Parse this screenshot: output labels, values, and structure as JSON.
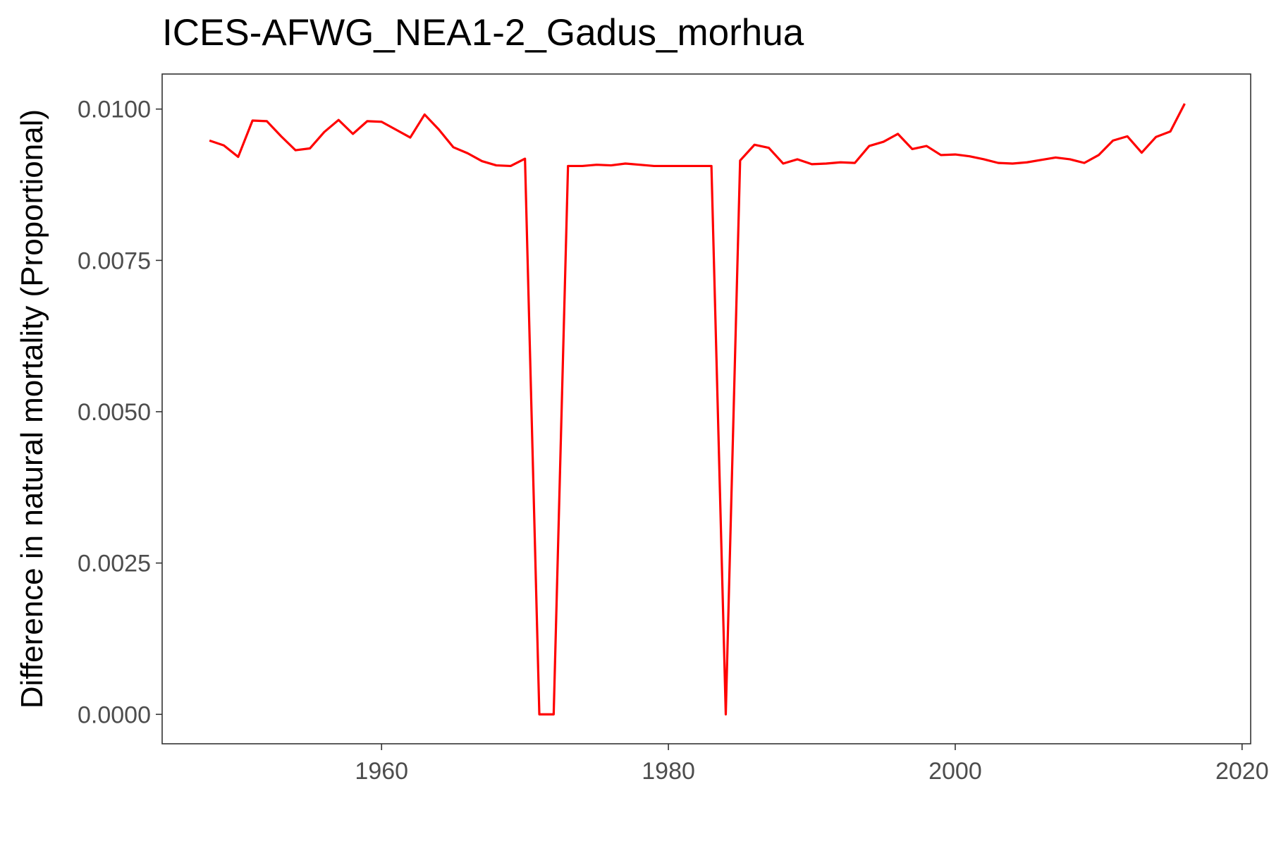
{
  "chart_data": {
    "type": "line",
    "title": "ICES-AFWG_NEA1-2_Gadus_morhua",
    "xlabel": "",
    "ylabel": "Difference in natural mortality (Proportional)",
    "xlim": [
      1944.7,
      2020.6
    ],
    "ylim": [
      -0.000486,
      0.010579
    ],
    "x_ticks": [
      1960,
      1980,
      2000,
      2020
    ],
    "x_tick_labels": [
      "1960",
      "1980",
      "2000",
      "2020"
    ],
    "y_ticks": [
      0.0,
      0.0025,
      0.005,
      0.0075,
      0.01
    ],
    "y_tick_labels": [
      "0.0000",
      "0.0025",
      "0.0050",
      "0.0075",
      "0.0100"
    ],
    "grid": false,
    "legend": "none",
    "series": [
      {
        "color": "#ff0000",
        "x": [
          1948,
          1949,
          1950,
          1951,
          1952,
          1953,
          1954,
          1955,
          1956,
          1957,
          1958,
          1959,
          1960,
          1961,
          1962,
          1963,
          1964,
          1965,
          1966,
          1967,
          1968,
          1969,
          1970,
          1971,
          1972,
          1973,
          1974,
          1975,
          1976,
          1977,
          1978,
          1979,
          1980,
          1981,
          1982,
          1983,
          1984,
          1985,
          1986,
          1987,
          1988,
          1989,
          1990,
          1991,
          1992,
          1993,
          1994,
          1995,
          1996,
          1997,
          1998,
          1999,
          2000,
          2001,
          2002,
          2003,
          2004,
          2005,
          2006,
          2007,
          2008,
          2009,
          2010,
          2011,
          2012,
          2013,
          2014,
          2015,
          2016
        ],
        "values": [
          0.00948,
          0.0094,
          0.00921,
          0.00981,
          0.0098,
          0.00955,
          0.00932,
          0.00935,
          0.00962,
          0.00982,
          0.00959,
          0.0098,
          0.00979,
          0.00966,
          0.00953,
          0.00991,
          0.00966,
          0.00937,
          0.00927,
          0.00914,
          0.00907,
          0.00906,
          0.00918,
          0.0,
          0.0,
          0.00906,
          0.00906,
          0.00908,
          0.00907,
          0.0091,
          0.00908,
          0.00906,
          0.00906,
          0.00906,
          0.00906,
          0.00906,
          0.0,
          0.00915,
          0.00941,
          0.00936,
          0.0091,
          0.00917,
          0.00909,
          0.0091,
          0.00912,
          0.00911,
          0.00939,
          0.00946,
          0.00959,
          0.00934,
          0.00939,
          0.00924,
          0.00925,
          0.00922,
          0.00917,
          0.00911,
          0.0091,
          0.00912,
          0.00916,
          0.0092,
          0.00917,
          0.00911,
          0.00924,
          0.00948,
          0.00955,
          0.00928,
          0.00954,
          0.00963,
          0.01009
        ]
      }
    ]
  }
}
